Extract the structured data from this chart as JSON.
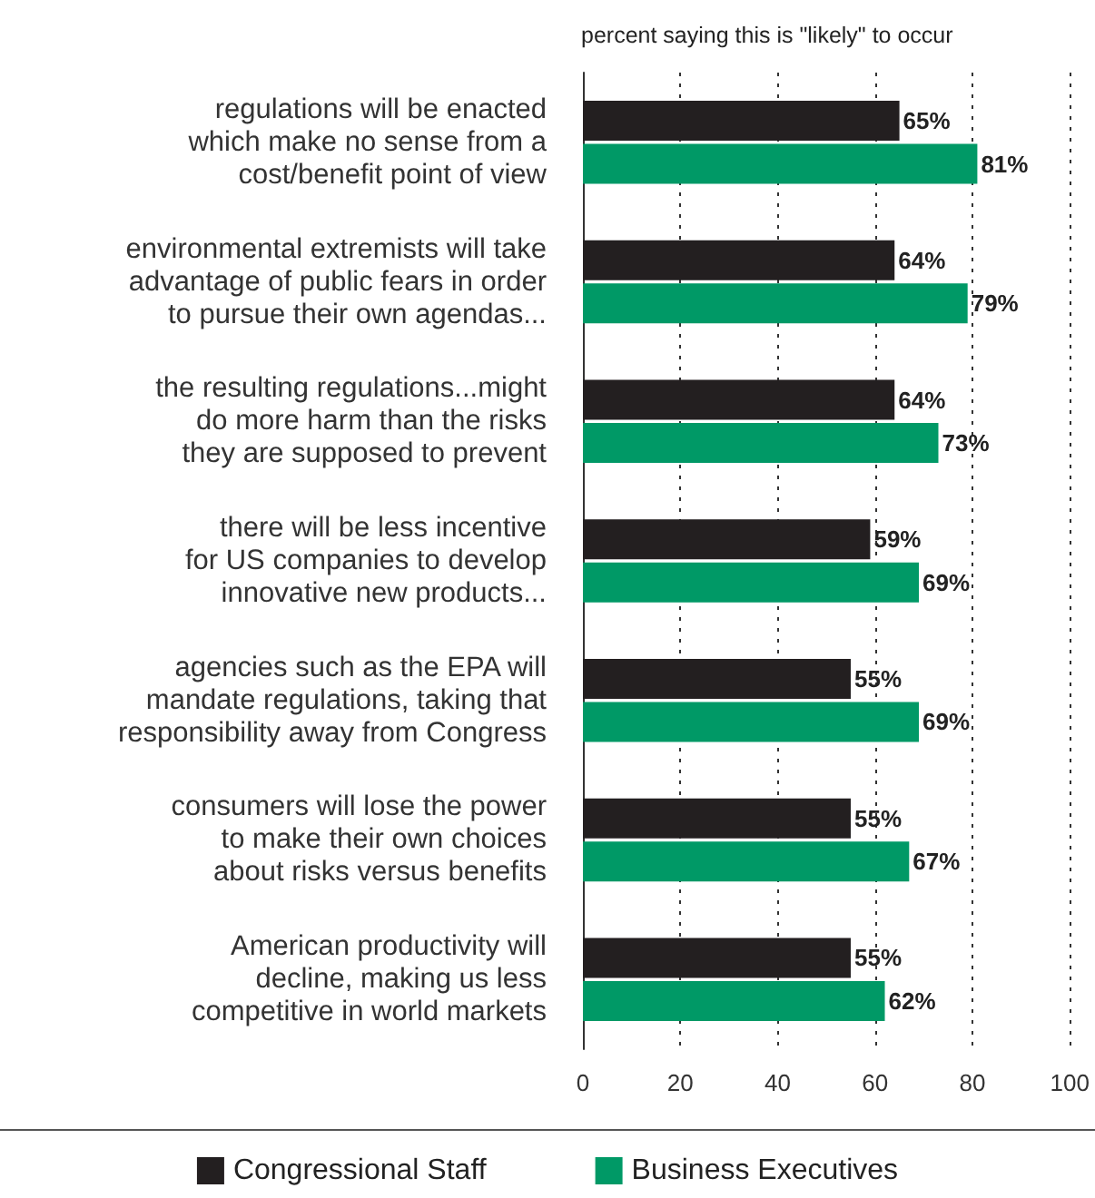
{
  "chart_data": {
    "type": "bar",
    "orientation": "horizontal",
    "subtitle": "percent saying this is \"likely\" to occur",
    "categories": [
      "regulations will be enacted\nwhich make no sense from a\ncost/benefit point of view",
      "environmental extremists will take\nadvantage of public fears in order\nto pursue their own agendas...",
      "the resulting regulations...might\ndo more harm than the risks\nthey are supposed to prevent",
      "there will be less incentive\nfor US companies to develop\ninnovative new products...",
      "agencies such as the EPA will\nmandate regulations, taking that\nresponsibility away from Congress",
      "consumers will lose the power\nto make their own choices\nabout risks versus benefits",
      "American productivity will\ndecline, making us less\ncompetitive in world markets"
    ],
    "series": [
      {
        "name": "Congressional Staff",
        "color": "#231f20",
        "values": [
          65,
          64,
          64,
          59,
          55,
          55,
          55
        ],
        "value_labels": [
          "65%",
          "64%",
          "64%",
          "59%",
          "55%",
          "55%",
          "55%"
        ]
      },
      {
        "name": "Business Executives",
        "color": "#009966",
        "values": [
          81,
          79,
          73,
          69,
          69,
          67,
          62
        ],
        "value_labels": [
          "81%",
          "79%",
          "73%",
          "69%",
          "69%",
          "67%",
          "62%"
        ]
      }
    ],
    "xlim": [
      0,
      100
    ],
    "xticks": [
      0,
      20,
      40,
      60,
      80,
      100
    ],
    "grid": "x",
    "legend": "bottom"
  }
}
